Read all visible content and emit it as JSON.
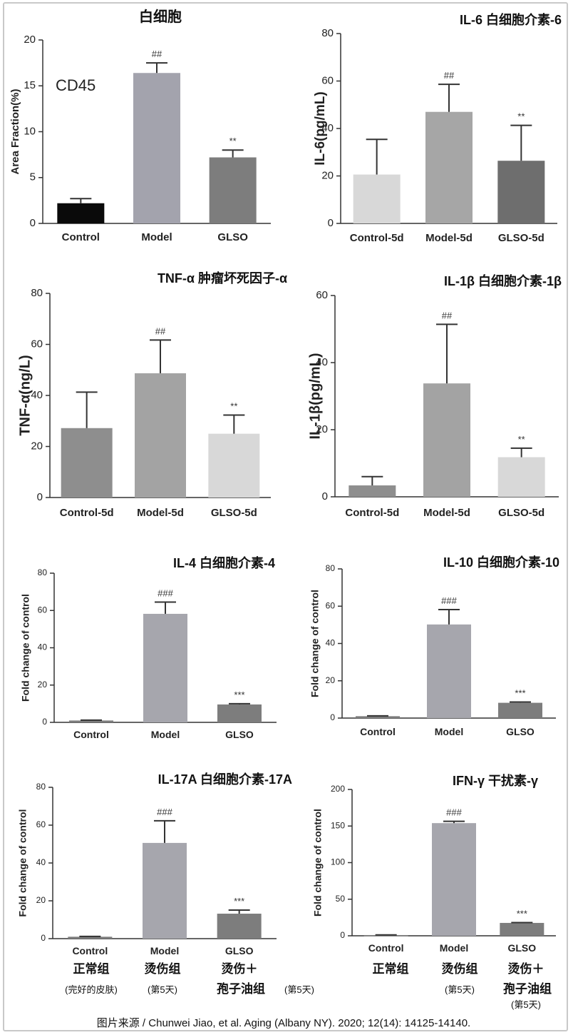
{
  "chart_data": [
    {
      "type": "bar",
      "title": "白细胞",
      "annotation": "CD45",
      "ylabel": "Area Fraction(%)",
      "categories": [
        "Control",
        "Model",
        "GLSO"
      ],
      "values": [
        2.2,
        16.4,
        7.2
      ],
      "errors": [
        0.5,
        1.1,
        0.8
      ],
      "significance": [
        "",
        "##",
        "**"
      ],
      "colors": [
        "#0a0a0a",
        "#a3a3ad",
        "#7d7d7d"
      ],
      "ylim": [
        0,
        20
      ],
      "yticks": [
        "0",
        "5",
        "10",
        "15",
        "20"
      ],
      "ytick_values": [
        0,
        5,
        10,
        15,
        20
      ]
    },
    {
      "type": "bar",
      "title": "IL-6 白细胞介素-6",
      "ylabel": "IL-6(pg/mL)",
      "categories": [
        "Control-5d",
        "Model-5d",
        "GLSO-5d"
      ],
      "values": [
        20.6,
        47,
        26.4
      ],
      "errors": [
        14.8,
        11.6,
        14.9
      ],
      "significance": [
        "",
        "##",
        "**"
      ],
      "colors": [
        "#d8d8d8",
        "#a6a6a6",
        "#6e6e6e"
      ],
      "ylim": [
        0,
        80
      ],
      "yticks": [
        "0",
        "20",
        "40",
        "60",
        "80"
      ],
      "ytick_values": [
        0,
        20,
        40,
        60,
        80
      ]
    },
    {
      "type": "bar",
      "title": "TNF-α 肿瘤坏死因子-α",
      "ylabel": "TNF-α(ng/L)",
      "categories": [
        "Control-5d",
        "Model-5d",
        "GLSO-5d"
      ],
      "values": [
        27.2,
        48.7,
        25
      ],
      "errors": [
        14.1,
        13,
        7.3
      ],
      "significance": [
        "",
        "##",
        "**"
      ],
      "colors": [
        "#8e8e8e",
        "#a3a3a3",
        "#d8d8d8"
      ],
      "ylim": [
        0,
        80
      ],
      "yticks": [
        "0",
        "20",
        "40",
        "60",
        "80"
      ],
      "ytick_values": [
        0,
        20,
        40,
        60,
        80
      ]
    },
    {
      "type": "bar",
      "title": "IL-1β 白细胞介素-1β",
      "ylabel": "IL-1β(pg/mL)",
      "categories": [
        "Control-5d",
        "Model-5d",
        "GLSO-5d"
      ],
      "values": [
        3.4,
        33.8,
        11.8
      ],
      "errors": [
        2.6,
        17.6,
        2.7
      ],
      "significance": [
        "",
        "##",
        "**"
      ],
      "colors": [
        "#8e8e8e",
        "#a3a3a3",
        "#d8d8d8"
      ],
      "ylim": [
        0,
        60
      ],
      "yticks": [
        "0",
        "20",
        "40",
        "60"
      ],
      "ytick_values": [
        0,
        20,
        40,
        60
      ]
    },
    {
      "type": "bar",
      "title": "IL-4 白细胞介素-4",
      "ylabel": "Fold change of control",
      "categories": [
        "Control",
        "Model",
        "GLSO"
      ],
      "values": [
        1,
        58.2,
        9.6
      ],
      "errors": [
        0.2,
        6.3,
        0.4
      ],
      "significance": [
        "",
        "###",
        "***"
      ],
      "colors": [
        "#7d7d7d",
        "#a6a6ad",
        "#7d7d7d"
      ],
      "ylim": [
        0,
        80
      ],
      "yticks": [
        "0",
        "20",
        "40",
        "60",
        "80"
      ],
      "ytick_values": [
        0,
        20,
        40,
        60,
        80
      ]
    },
    {
      "type": "bar",
      "title": "IL-10 白细胞介素-10",
      "ylabel": "Fold change of control",
      "categories": [
        "Control",
        "Model",
        "GLSO"
      ],
      "values": [
        1,
        50.2,
        8.2
      ],
      "errors": [
        0.2,
        8,
        0.4
      ],
      "significance": [
        "",
        "###",
        "***"
      ],
      "colors": [
        "#7d7d7d",
        "#a6a6ad",
        "#7d7d7d"
      ],
      "ylim": [
        0,
        80
      ],
      "yticks": [
        "0",
        "20",
        "40",
        "60",
        "80"
      ],
      "ytick_values": [
        0,
        20,
        40,
        60,
        80
      ]
    },
    {
      "type": "bar",
      "title": "IL-17A 白细胞介素-17A",
      "ylabel": "Fold change of control",
      "categories": [
        "Control",
        "Model",
        "GLSO"
      ],
      "values": [
        1,
        50.6,
        13.2
      ],
      "errors": [
        0.2,
        11.7,
        1.9
      ],
      "significance": [
        "",
        "###",
        "***"
      ],
      "colors": [
        "#7d7d7d",
        "#a6a6ad",
        "#7d7d7d"
      ],
      "ylim": [
        0,
        80
      ],
      "yticks": [
        "0",
        "20",
        "40",
        "60",
        "80"
      ],
      "ytick_values": [
        0,
        20,
        40,
        60,
        80
      ]
    },
    {
      "type": "bar",
      "title": "IFN-γ 干扰素-γ",
      "ylabel": "Fold change of control",
      "categories": [
        "Control",
        "Model",
        "GLSO"
      ],
      "values": [
        1,
        154,
        17.6
      ],
      "errors": [
        0.2,
        2.5,
        0.5
      ],
      "significance": [
        "",
        "###",
        "***"
      ],
      "colors": [
        "#7d7d7d",
        "#a6a6ad",
        "#7d7d7d"
      ],
      "ylim": [
        0,
        200
      ],
      "yticks": [
        "0",
        "50",
        "100",
        "150",
        "200"
      ],
      "ytick_values": [
        0,
        50,
        100,
        150,
        200
      ]
    }
  ],
  "captions": {
    "left": {
      "normal": "正常组",
      "normal_note": "(完好的皮肤)",
      "burn": "烫伤组",
      "burn_note": "(第5天)",
      "treat_line1": "烫伤＋",
      "treat_line2": "孢子油组",
      "treat_note": "(第5天)"
    },
    "right": {
      "normal": "正常组",
      "burn": "烫伤组",
      "burn_note": "(第5天)",
      "treat_line1": "烫伤＋",
      "treat_line2": "孢子油组",
      "treat_note": "(第5天)"
    }
  },
  "credit": "图片来源 / Chunwei Jiao, et al. Aging (Albany NY). 2020; 12(14): 14125-14140."
}
